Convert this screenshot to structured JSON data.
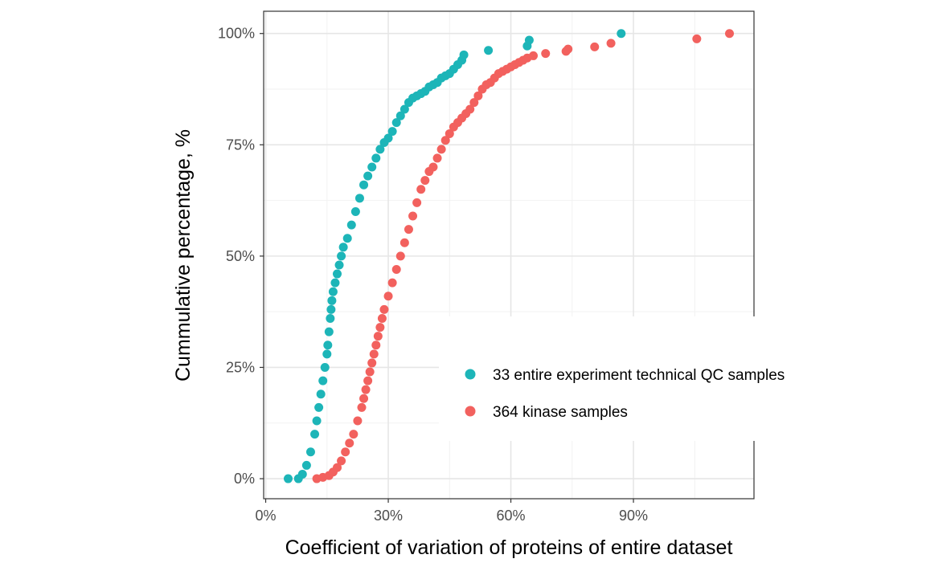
{
  "chart_data": {
    "type": "scatter",
    "title": "",
    "xlabel": "Coefficient of variation of proteins of entire dataset",
    "ylabel": "Cummulative percentage, %",
    "xlim": [
      -0.005,
      1.195
    ],
    "ylim": [
      -0.045,
      1.05
    ],
    "x_ticks": [
      0,
      0.3,
      0.6,
      0.9
    ],
    "x_tick_labels": [
      "0%",
      "30%",
      "60%",
      "90%"
    ],
    "y_ticks": [
      0,
      0.25,
      0.5,
      0.75,
      1.0
    ],
    "y_tick_labels": [
      "0%",
      "25%",
      "50%",
      "75%",
      "100%"
    ],
    "grid": true,
    "legend_position": "inside-bottom-right",
    "series": [
      {
        "name": "33 entire experiment technical QC samples",
        "color": "#1DB5B8",
        "x": [
          0.055,
          0.08,
          0.09,
          0.1,
          0.11,
          0.12,
          0.125,
          0.13,
          0.135,
          0.14,
          0.145,
          0.15,
          0.152,
          0.155,
          0.158,
          0.16,
          0.162,
          0.165,
          0.17,
          0.175,
          0.18,
          0.185,
          0.19,
          0.2,
          0.21,
          0.22,
          0.23,
          0.24,
          0.25,
          0.26,
          0.27,
          0.28,
          0.29,
          0.3,
          0.31,
          0.32,
          0.33,
          0.34,
          0.35,
          0.36,
          0.37,
          0.38,
          0.39,
          0.4,
          0.41,
          0.42,
          0.43,
          0.44,
          0.45,
          0.46,
          0.47,
          0.48,
          0.485,
          0.545,
          0.64,
          0.645,
          0.87
        ],
        "y": [
          0.0,
          0.0,
          0.01,
          0.03,
          0.06,
          0.1,
          0.13,
          0.16,
          0.19,
          0.22,
          0.25,
          0.28,
          0.3,
          0.33,
          0.36,
          0.38,
          0.4,
          0.42,
          0.44,
          0.46,
          0.48,
          0.5,
          0.52,
          0.54,
          0.57,
          0.6,
          0.63,
          0.66,
          0.68,
          0.7,
          0.72,
          0.74,
          0.755,
          0.765,
          0.78,
          0.8,
          0.815,
          0.83,
          0.845,
          0.855,
          0.86,
          0.865,
          0.87,
          0.88,
          0.885,
          0.89,
          0.9,
          0.905,
          0.91,
          0.92,
          0.93,
          0.94,
          0.952,
          0.962,
          0.972,
          0.985,
          1.0
        ]
      },
      {
        "name": "364 kinase samples",
        "color": "#F2615E",
        "x": [
          0.125,
          0.14,
          0.155,
          0.165,
          0.175,
          0.185,
          0.195,
          0.205,
          0.215,
          0.225,
          0.235,
          0.24,
          0.245,
          0.25,
          0.255,
          0.26,
          0.265,
          0.27,
          0.275,
          0.28,
          0.285,
          0.29,
          0.3,
          0.31,
          0.32,
          0.33,
          0.34,
          0.35,
          0.36,
          0.37,
          0.38,
          0.39,
          0.4,
          0.41,
          0.42,
          0.43,
          0.44,
          0.45,
          0.46,
          0.47,
          0.48,
          0.49,
          0.5,
          0.51,
          0.52,
          0.53,
          0.54,
          0.55,
          0.56,
          0.57,
          0.58,
          0.59,
          0.6,
          0.61,
          0.62,
          0.63,
          0.64,
          0.655,
          0.685,
          0.735,
          0.74,
          0.805,
          0.845,
          1.055,
          1.135
        ],
        "y": [
          0.0,
          0.003,
          0.007,
          0.015,
          0.025,
          0.04,
          0.06,
          0.08,
          0.1,
          0.13,
          0.16,
          0.18,
          0.2,
          0.22,
          0.24,
          0.26,
          0.28,
          0.3,
          0.32,
          0.34,
          0.36,
          0.38,
          0.41,
          0.44,
          0.47,
          0.5,
          0.53,
          0.56,
          0.59,
          0.62,
          0.65,
          0.67,
          0.69,
          0.7,
          0.72,
          0.74,
          0.76,
          0.775,
          0.79,
          0.8,
          0.81,
          0.82,
          0.83,
          0.845,
          0.86,
          0.875,
          0.885,
          0.89,
          0.9,
          0.91,
          0.915,
          0.92,
          0.925,
          0.93,
          0.935,
          0.94,
          0.945,
          0.95,
          0.955,
          0.96,
          0.965,
          0.97,
          0.978,
          0.988,
          1.0
        ]
      }
    ]
  }
}
